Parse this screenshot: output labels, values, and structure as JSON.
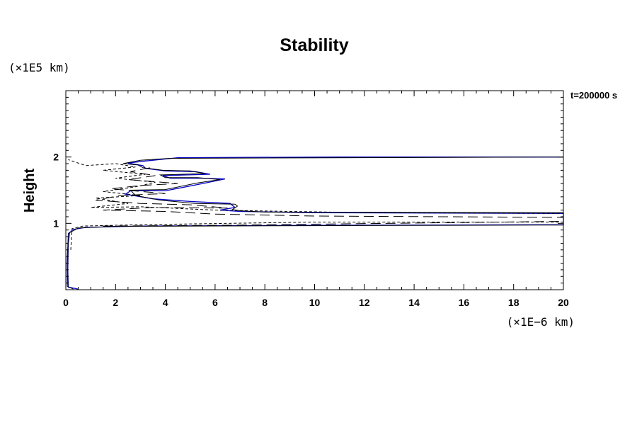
{
  "chart_data": {
    "type": "line",
    "title": "Stability",
    "ylabel": "Height",
    "xlabel": "",
    "y_scale_label": "(×1E5 km)",
    "x_scale_label": "(×1E−6 km)",
    "time_label": "t=200000 s",
    "xlim": [
      0,
      20
    ],
    "ylim": [
      0,
      3
    ],
    "x_ticks": [
      "0",
      "2",
      "4",
      "6",
      "8",
      "10",
      "12",
      "14",
      "16",
      "18",
      "20"
    ],
    "y_ticks": [
      "1",
      "2"
    ],
    "grid": false,
    "colors": {
      "blue": "#0000cc",
      "black": "#000000"
    },
    "series": [
      {
        "style": "solid-blue",
        "points": [
          [
            0.5,
            0.01
          ],
          [
            0.1,
            0.04
          ],
          [
            0.08,
            0.3
          ],
          [
            0.1,
            0.7
          ],
          [
            0.15,
            0.86
          ],
          [
            0.3,
            0.91
          ],
          [
            0.8,
            0.94
          ],
          [
            3,
            0.96
          ],
          [
            10,
            0.97
          ],
          [
            20,
            0.98
          ],
          [
            20,
            1.15
          ],
          [
            10,
            1.16
          ],
          [
            7,
            1.18
          ],
          [
            6.2,
            1.2
          ],
          [
            6.8,
            1.24
          ],
          [
            6.6,
            1.3
          ],
          [
            5,
            1.33
          ],
          [
            3.5,
            1.37
          ],
          [
            2.4,
            1.44
          ],
          [
            2.6,
            1.49
          ],
          [
            4,
            1.49
          ],
          [
            5.5,
            1.6
          ],
          [
            6.4,
            1.67
          ],
          [
            5.5,
            1.68
          ],
          [
            4.2,
            1.68
          ],
          [
            3.9,
            1.72
          ],
          [
            5.8,
            1.74
          ],
          [
            5.2,
            1.78
          ],
          [
            4,
            1.79
          ],
          [
            3.2,
            1.83
          ],
          [
            3.1,
            1.87
          ],
          [
            2.5,
            1.91
          ],
          [
            3.2,
            1.94
          ],
          [
            4.5,
            1.99
          ],
          [
            11,
            2.0
          ],
          [
            20,
            2.0
          ]
        ]
      },
      {
        "style": "solid-black",
        "points": [
          [
            0.3,
            0.01
          ],
          [
            0.06,
            0.05
          ],
          [
            0.05,
            0.4
          ],
          [
            0.1,
            0.85
          ],
          [
            0.5,
            0.93
          ],
          [
            2,
            0.955
          ],
          [
            10,
            0.965
          ],
          [
            20,
            0.975
          ],
          [
            20,
            1.16
          ],
          [
            8,
            1.17
          ],
          [
            7,
            1.19
          ],
          [
            6.7,
            1.21
          ],
          [
            6.9,
            1.26
          ],
          [
            6.8,
            1.29
          ],
          [
            5.2,
            1.3
          ],
          [
            3.8,
            1.35
          ],
          [
            2.8,
            1.42
          ],
          [
            2.6,
            1.5
          ],
          [
            4,
            1.51
          ],
          [
            5.3,
            1.61
          ],
          [
            6.2,
            1.66
          ],
          [
            5.3,
            1.69
          ],
          [
            4,
            1.69
          ],
          [
            3.8,
            1.73
          ],
          [
            5.6,
            1.75
          ],
          [
            5,
            1.79
          ],
          [
            3.9,
            1.8
          ],
          [
            3.1,
            1.84
          ],
          [
            2.9,
            1.88
          ],
          [
            2.3,
            1.9
          ],
          [
            3,
            1.95
          ],
          [
            4.2,
            1.98
          ],
          [
            20,
            2.0
          ]
        ]
      },
      {
        "style": "dashed-long",
        "points": [
          [
            1.5,
            0.96
          ],
          [
            6,
            0.97
          ],
          [
            20,
            1.03
          ],
          [
            20,
            1.09
          ],
          [
            10,
            1.11
          ],
          [
            6,
            1.14
          ],
          [
            4,
            1.18
          ],
          [
            1.5,
            1.2
          ],
          [
            3.5,
            1.24
          ],
          [
            6.5,
            1.23
          ],
          [
            5,
            1.28
          ],
          [
            3,
            1.3
          ],
          [
            1.2,
            1.35
          ],
          [
            2.2,
            1.42
          ],
          [
            4,
            1.45
          ],
          [
            1.8,
            1.52
          ],
          [
            3,
            1.57
          ],
          [
            4.5,
            1.6
          ],
          [
            2.5,
            1.66
          ],
          [
            3.6,
            1.72
          ],
          [
            2.6,
            1.78
          ],
          [
            3.4,
            1.84
          ]
        ]
      },
      {
        "style": "dashed-short",
        "points": [
          [
            0.2,
            0.6
          ],
          [
            0.25,
            0.92
          ],
          [
            0.7,
            0.96
          ],
          [
            3,
            0.98
          ],
          [
            10,
            1.02
          ],
          [
            20,
            1.02
          ],
          [
            20,
            1.15
          ],
          [
            12,
            1.16
          ],
          [
            6,
            1.2
          ],
          [
            3,
            1.25
          ],
          [
            1,
            1.24
          ],
          [
            2.5,
            1.3
          ],
          [
            1.2,
            1.38
          ],
          [
            3,
            1.42
          ],
          [
            1.5,
            1.48
          ],
          [
            2.8,
            1.55
          ],
          [
            3.6,
            1.62
          ],
          [
            2,
            1.68
          ],
          [
            3.2,
            1.74
          ],
          [
            1.5,
            1.8
          ],
          [
            2.8,
            1.85
          ],
          [
            2,
            1.9
          ],
          [
            0.8,
            1.87
          ],
          [
            0.1,
            1.96
          ]
        ]
      }
    ]
  }
}
